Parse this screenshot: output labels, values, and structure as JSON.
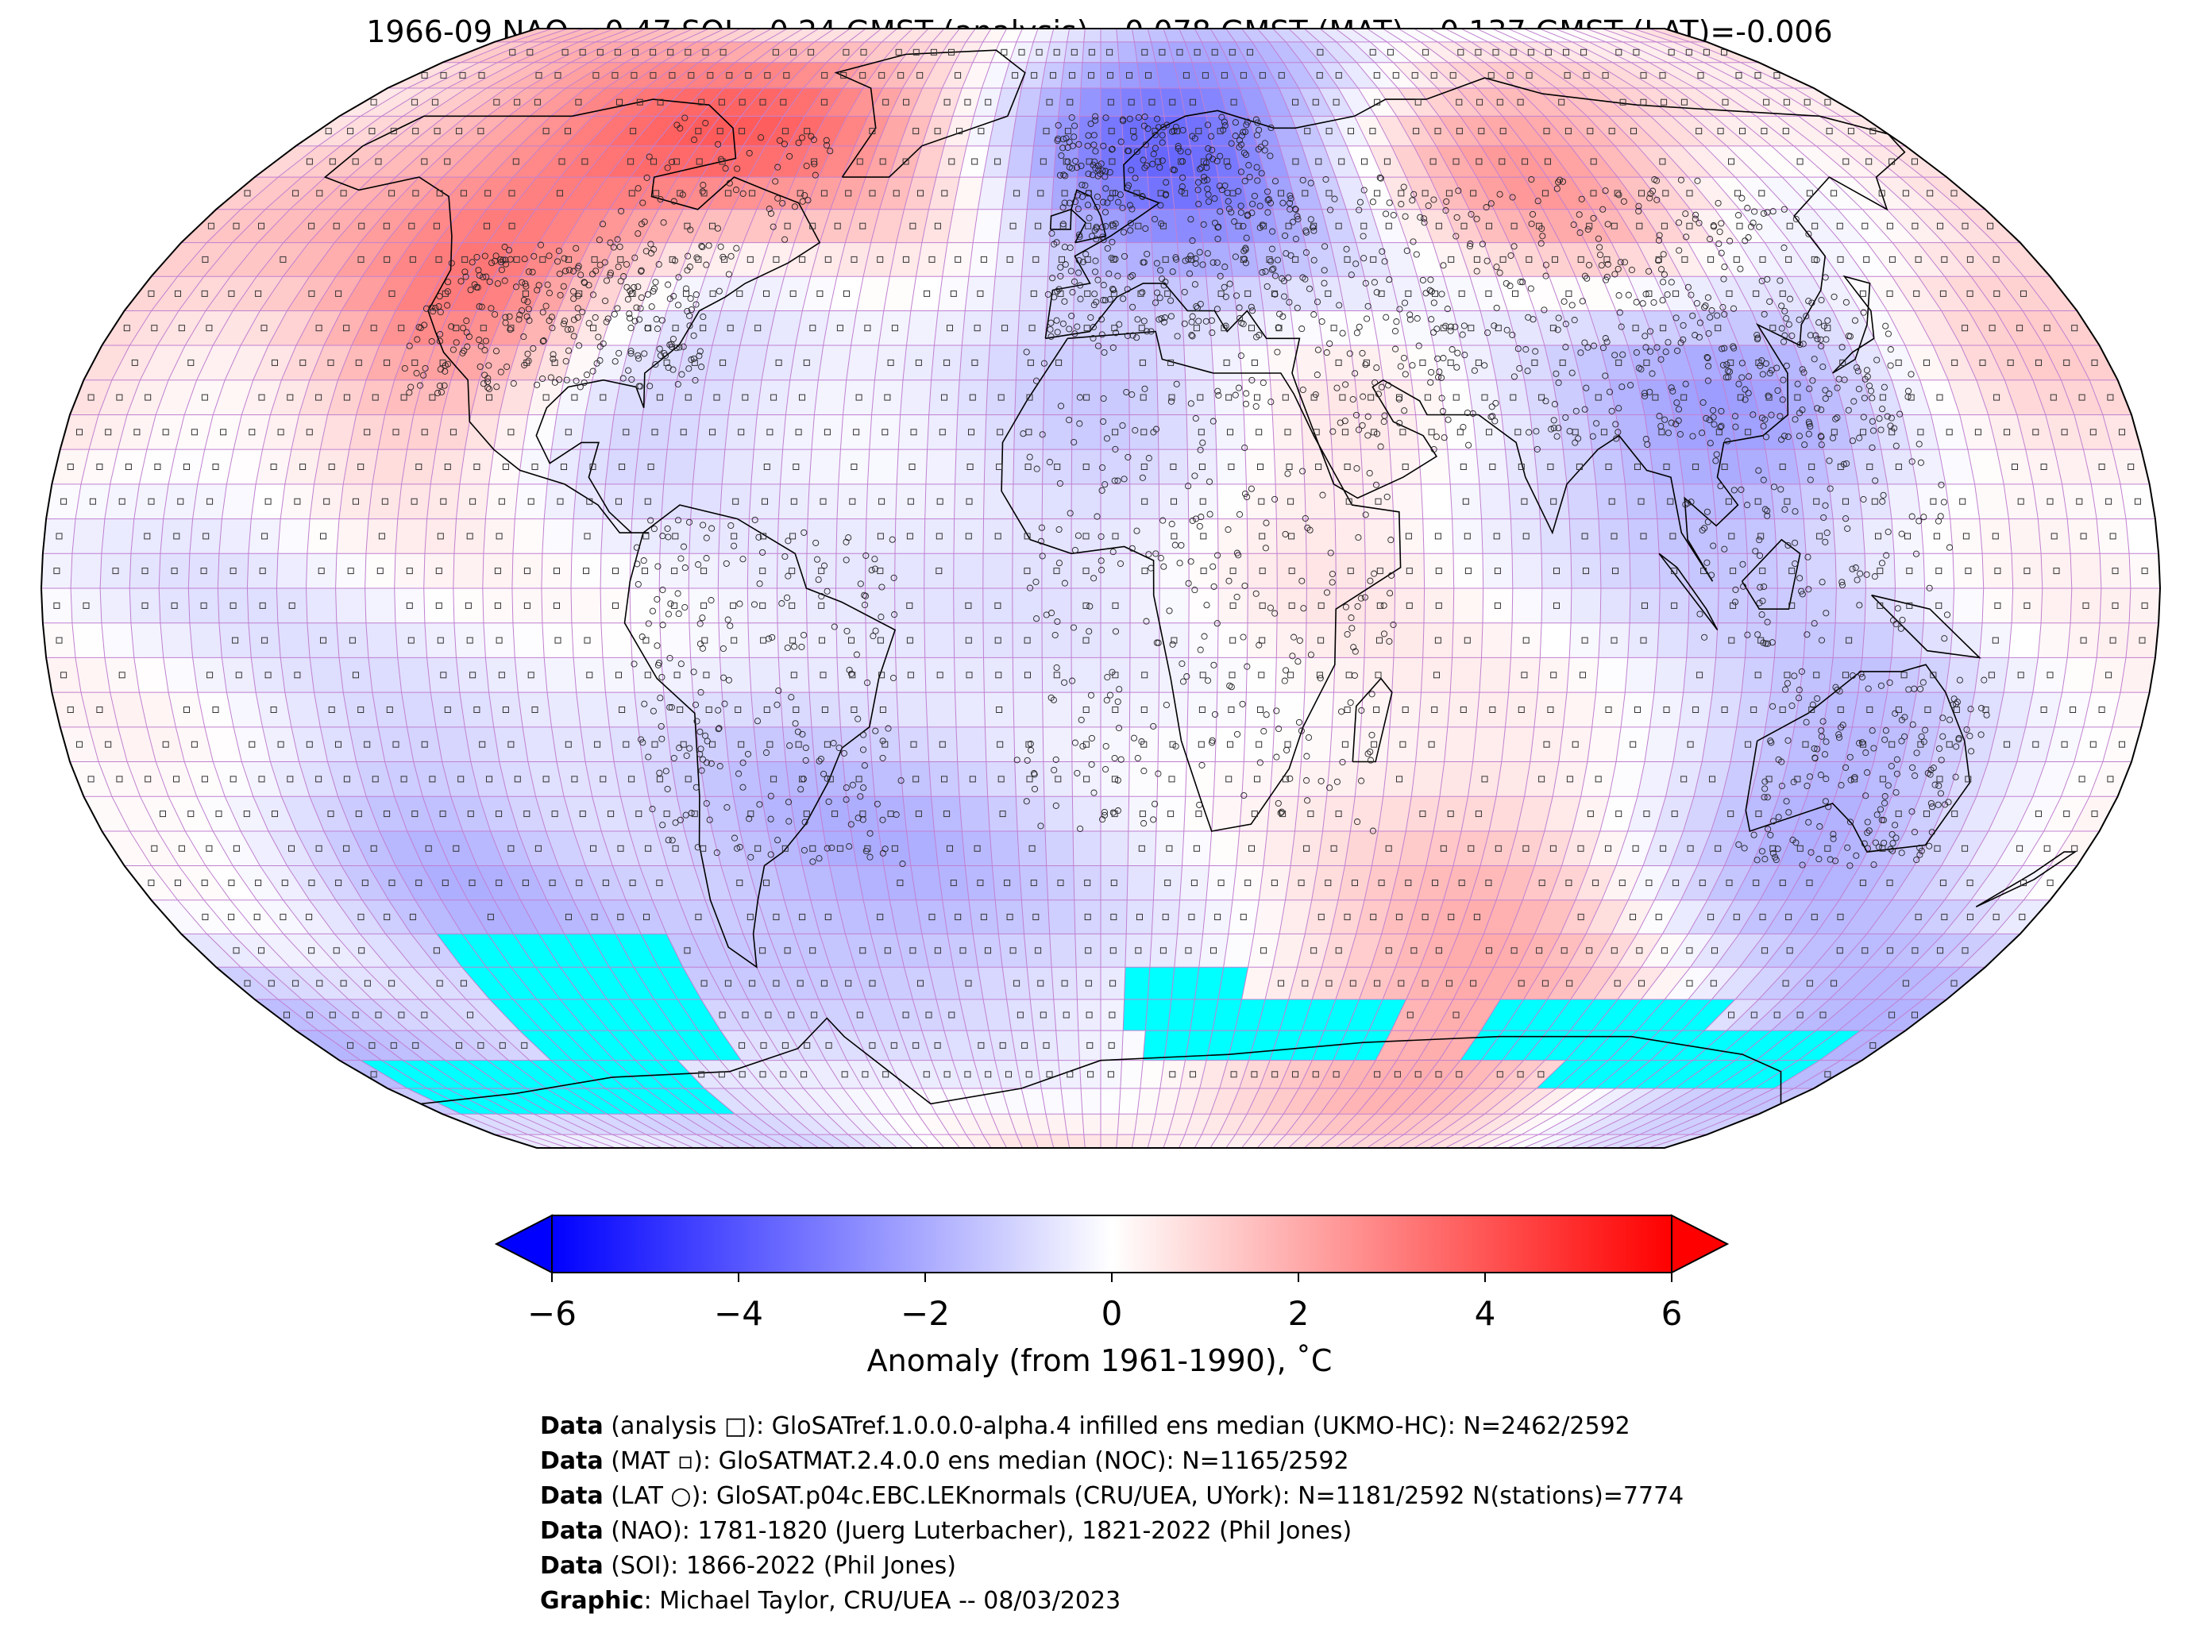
{
  "title": "1966-09 NAO=-0.47 SOI=-0.24 GMST (analysis)=-0.078 GMST (MAT)=-0.137 GMST (LAT)=-0.006",
  "colors": {
    "cold": "#0000ff",
    "neutral": "#ffffff",
    "warm": "#ff0000",
    "missing": "#00ffff",
    "grid": "#c080d0",
    "coast": "#000000"
  },
  "colorbar": {
    "min": -6,
    "max": 6,
    "ticks": [
      "−6",
      "−4",
      "−2",
      "0",
      "2",
      "4",
      "6"
    ],
    "label": "Anomaly (from 1961-1990), ˚C",
    "extend": "both"
  },
  "credits": [
    {
      "bold": "Data",
      "text": " (analysis □): GloSATref.1.0.0.0-alpha.4 infilled ens median (UKMO-HC): N=2462/2592"
    },
    {
      "bold": "Data",
      "text": " (MAT ▫): GloSATMAT.2.4.0.0 ens median (NOC): N=1165/2592"
    },
    {
      "bold": "Data",
      "text": " (LAT ○): GloSAT.p04c.EBC.LEKnormals (CRU/UEA, UYork): N=1181/2592 N(stations)=7774"
    },
    {
      "bold": "Data",
      "text": " (NAO): 1781-1820 (Juerg Luterbacher), 1821-2022 (Phil Jones)"
    },
    {
      "bold": "Data",
      "text": " (SOI): 1866-2022 (Phil Jones)"
    },
    {
      "bold": "Graphic",
      "text": ": Michael Taylor, CRU/UEA -- 08/03/2023"
    }
  ],
  "map": {
    "projection": "Robinson",
    "grid_resolution_deg": 5,
    "anomaly_regions": [
      {
        "name": "Western North America",
        "lon": -115,
        "lat": 45,
        "value": 3.2
      },
      {
        "name": "Arctic Canada",
        "lon": -85,
        "lat": 68,
        "value": 2.4
      },
      {
        "name": "Greenland",
        "lon": -45,
        "lat": 70,
        "value": 2.2
      },
      {
        "name": "Eastern North America",
        "lon": -85,
        "lat": 38,
        "value": -2.0
      },
      {
        "name": "Scandinavia",
        "lon": 20,
        "lat": 65,
        "value": -2.6
      },
      {
        "name": "Arctic Atlantic",
        "lon": -5,
        "lat": 78,
        "value": -2.4
      },
      {
        "name": "Central Siberia",
        "lon": 95,
        "lat": 60,
        "value": 3.6
      },
      {
        "name": "East Siberia",
        "lon": 135,
        "lat": 60,
        "value": -1.4
      },
      {
        "name": "Tibet",
        "lon": 85,
        "lat": 35,
        "value": -1.0
      },
      {
        "name": "South China",
        "lon": 110,
        "lat": 27,
        "value": -2.2
      },
      {
        "name": "North Pacific",
        "lon": 170,
        "lat": 45,
        "value": 1.6
      },
      {
        "name": "Sahara",
        "lon": 0,
        "lat": 22,
        "value": -1.2
      },
      {
        "name": "Arabia",
        "lon": 40,
        "lat": 25,
        "value": 0.8
      },
      {
        "name": "South Pacific East",
        "lon": -120,
        "lat": -40,
        "value": -1.6
      },
      {
        "name": "South Pacific",
        "lon": -160,
        "lat": -30,
        "value": 0.6
      },
      {
        "name": "South America South",
        "lon": -60,
        "lat": -35,
        "value": -1.4
      },
      {
        "name": "South Atlantic",
        "lon": -30,
        "lat": -45,
        "value": -1.2
      },
      {
        "name": "Australia South",
        "lon": 130,
        "lat": -30,
        "value": -1.8
      },
      {
        "name": "Southern Indian Ocean",
        "lon": 70,
        "lat": -48,
        "value": 1.2
      },
      {
        "name": "Antarctica East",
        "lon": 90,
        "lat": -75,
        "value": 1.6
      },
      {
        "name": "Ross Sea",
        "lon": 170,
        "lat": -72,
        "value": -1.8
      },
      {
        "name": "Tropical Pacific",
        "lon": -150,
        "lat": 0,
        "value": -0.5
      }
    ],
    "missing_zones": [
      {
        "lon_min": -130,
        "lon_max": -85,
        "lat_min": -70,
        "lat_max": -50
      },
      {
        "lon_min": -175,
        "lon_max": -100,
        "lat_min": -80,
        "lat_max": -70
      },
      {
        "lon_min": 5,
        "lon_max": 30,
        "lat_min": -65,
        "lat_max": -55
      },
      {
        "lon_min": 10,
        "lon_max": 65,
        "lat_min": -70,
        "lat_max": -60
      },
      {
        "lon_min": 85,
        "lon_max": 135,
        "lat_min": -70,
        "lat_max": -60
      },
      {
        "lon_min": 110,
        "lon_max": 170,
        "lat_min": -75,
        "lat_max": -65
      }
    ]
  }
}
